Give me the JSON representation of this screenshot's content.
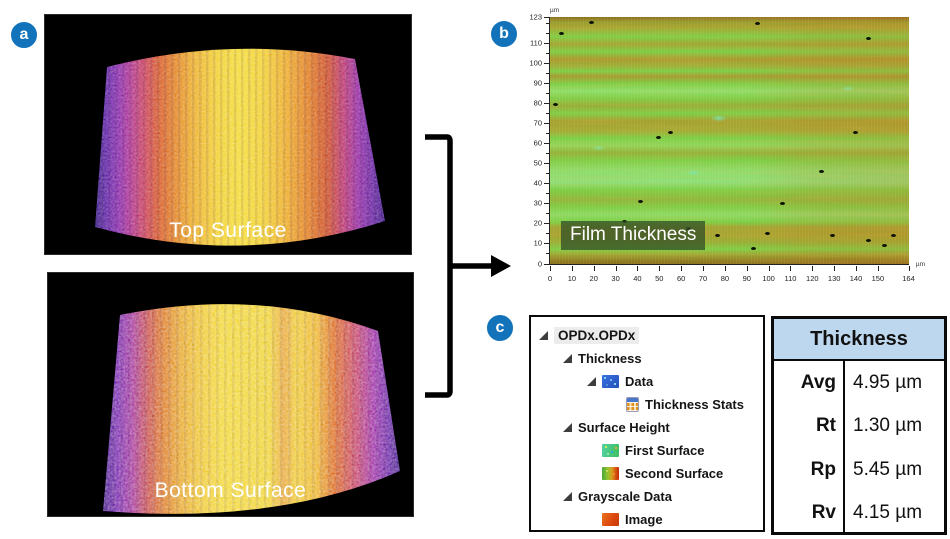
{
  "badges": {
    "a": "a",
    "b": "b",
    "c": "c"
  },
  "panel_a": {
    "top_label": "Top Surface",
    "bottom_label": "Bottom Surface"
  },
  "panel_b": {
    "overlay_label": "Film Thickness",
    "y_axis_unit": "µm",
    "x_axis_unit": "µm",
    "y_max": 123,
    "x_max": 164,
    "y_ticks": [
      123,
      110,
      100,
      90,
      80,
      70,
      60,
      50,
      40,
      30,
      20,
      10,
      0
    ],
    "y_minor_ticks": [
      120,
      115,
      105,
      95,
      85,
      75,
      65,
      55,
      45,
      35,
      25,
      15,
      5
    ],
    "x_ticks": [
      0,
      10,
      20,
      30,
      40,
      50,
      60,
      70,
      80,
      90,
      100,
      110,
      120,
      130,
      140,
      150,
      164
    ],
    "speck_positions": [
      [
        11,
        1.5
      ],
      [
        2.5,
        6
      ],
      [
        0.8,
        35
      ],
      [
        57,
        2
      ],
      [
        88,
        8
      ],
      [
        20,
        82
      ],
      [
        24.5,
        74
      ],
      [
        33,
        46
      ],
      [
        29.5,
        48
      ],
      [
        38,
        85
      ],
      [
        46,
        88
      ],
      [
        56,
        93
      ],
      [
        60,
        87
      ],
      [
        64,
        75
      ],
      [
        75,
        62
      ],
      [
        78,
        88
      ],
      [
        84.5,
        46
      ],
      [
        88,
        90
      ],
      [
        92.5,
        92
      ],
      [
        95,
        88
      ]
    ]
  },
  "tree": {
    "items": [
      {
        "level": 0,
        "expander": true,
        "icon": null,
        "label": "OPDx.OPDx",
        "selected": true
      },
      {
        "level": 1,
        "expander": true,
        "icon": null,
        "label": "Thickness"
      },
      {
        "level": 2,
        "expander": true,
        "icon": "data-thumbnail",
        "label": "Data"
      },
      {
        "level": 3,
        "expander": false,
        "icon": "stats-calculator",
        "label": "Thickness Stats"
      },
      {
        "level": 1,
        "expander": true,
        "icon": null,
        "label": "Surface Height"
      },
      {
        "level": 2,
        "expander": false,
        "icon": "first-surface-thumbnail",
        "label": "First Surface"
      },
      {
        "level": 2,
        "expander": false,
        "icon": "second-surface-thumbnail",
        "label": "Second Surface"
      },
      {
        "level": 1,
        "expander": true,
        "icon": null,
        "label": "Grayscale Data"
      },
      {
        "level": 2,
        "expander": false,
        "icon": "image-thumbnail",
        "label": "Image"
      }
    ]
  },
  "table": {
    "title": "Thickness",
    "rows": [
      {
        "label": "Avg",
        "value": "4.95 µm"
      },
      {
        "label": "Rt",
        "value": "1.30 µm"
      },
      {
        "label": "Rp",
        "value": "5.45 µm"
      },
      {
        "label": "Rv",
        "value": "4.15 µm"
      }
    ]
  },
  "colors": {
    "badge_blue": "#1273bb",
    "table_header_blue": "#bdd7ee",
    "heatmap_green": "#7ccf45",
    "heatmap_orange": "#d26f1e",
    "overlay_green": "#345226"
  }
}
